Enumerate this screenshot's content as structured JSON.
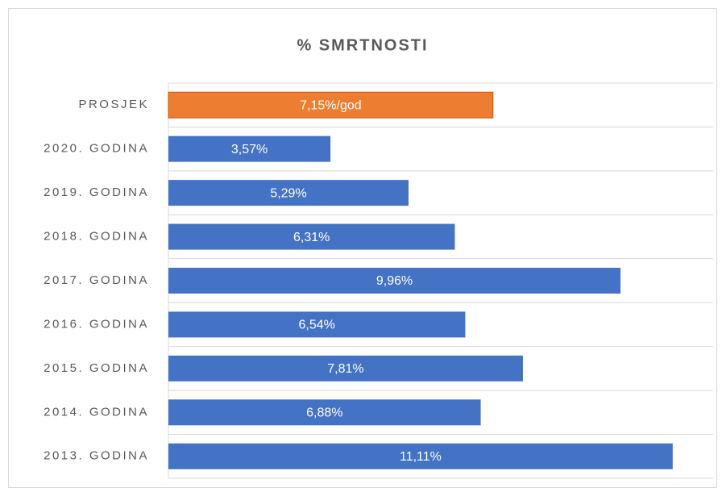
{
  "chart_data": {
    "type": "bar",
    "orientation": "horizontal",
    "title": "% SMRTNOSTI",
    "categories": [
      "PROSJEK",
      "2020. GODINA",
      "2019. GODINA",
      "2018. GODINA",
      "2017. GODINA",
      "2016. GODINA",
      "2015. GODINA",
      "2014. GODINA",
      "2013. GODINA"
    ],
    "values": [
      7.15,
      3.57,
      5.29,
      6.31,
      9.96,
      6.54,
      7.81,
      6.88,
      11.11
    ],
    "value_labels": [
      "7,15%/god",
      "3,57%",
      "5,29%",
      "6,31%",
      "9,96%",
      "6,54%",
      "7,81%",
      "6,88%",
      "11,11%"
    ],
    "colors": [
      "#ed7d31",
      "#4472c4",
      "#4472c4",
      "#4472c4",
      "#4472c4",
      "#4472c4",
      "#4472c4",
      "#4472c4",
      "#4472c4"
    ],
    "xlim": [
      0,
      12
    ],
    "grid": true
  }
}
